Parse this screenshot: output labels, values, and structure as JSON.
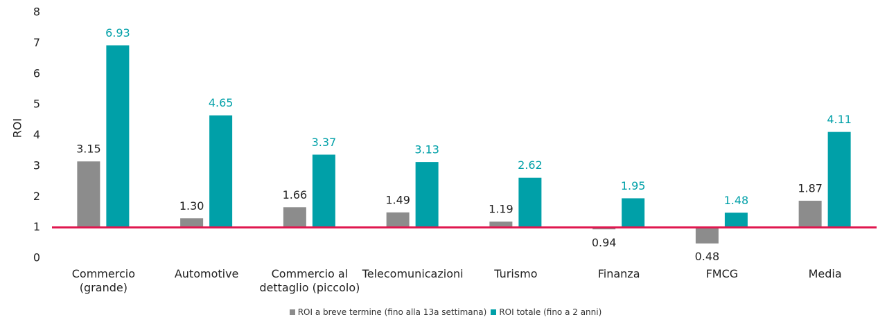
{
  "chart_data": {
    "type": "bar",
    "y_label": "ROI",
    "categories": [
      "Commercio\n(grande)",
      "Automotive",
      "Commercio al\ndettaglio (piccolo)",
      "Telecomunicazioni",
      "Turismo",
      "Finanza",
      "FMCG",
      "Media"
    ],
    "series": [
      {
        "name": "ROI a breve termine (fino alla 13a settimana)",
        "color": "#8c8c8c",
        "label_color": "#222222",
        "values": [
          3.15,
          1.3,
          1.66,
          1.49,
          1.19,
          0.94,
          0.48,
          1.87
        ],
        "value_labels": [
          "3.15",
          "1.30",
          "1.66",
          "1.49",
          "1.19",
          "0.94",
          "0.48",
          "1.87"
        ]
      },
      {
        "name": "ROI totale (fino a 2 anni)",
        "color": "#00a0a8",
        "label_color": "#00a0a8",
        "values": [
          6.93,
          4.65,
          3.37,
          3.13,
          2.62,
          1.95,
          1.48,
          4.11
        ]
      }
    ],
    "ylim": [
      0,
      8
    ],
    "yticks": [
      0,
      1,
      2,
      3,
      4,
      5,
      6,
      7,
      8
    ],
    "baseline": 1,
    "baseline_color": "#e0174f",
    "legend": "bottom"
  }
}
